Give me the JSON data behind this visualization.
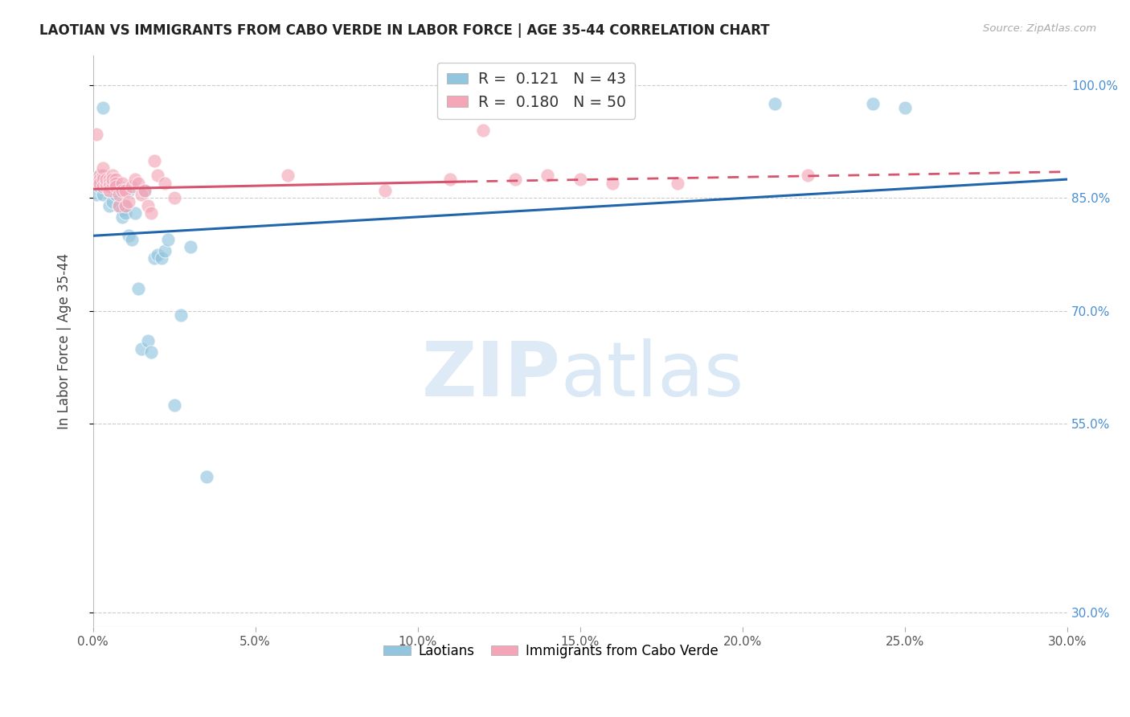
{
  "title": "LAOTIAN VS IMMIGRANTS FROM CABO VERDE IN LABOR FORCE | AGE 35-44 CORRELATION CHART",
  "source": "Source: ZipAtlas.com",
  "ylabel": "In Labor Force | Age 35-44",
  "xlim": [
    0.0,
    0.3
  ],
  "ylim": [
    0.28,
    1.04
  ],
  "xtick_labels": [
    "0.0%",
    "5.0%",
    "10.0%",
    "15.0%",
    "20.0%",
    "25.0%",
    "30.0%"
  ],
  "xtick_values": [
    0.0,
    0.05,
    0.1,
    0.15,
    0.2,
    0.25,
    0.3
  ],
  "ytick_labels": [
    "30.0%",
    "55.0%",
    "70.0%",
    "85.0%",
    "100.0%"
  ],
  "ytick_values": [
    0.3,
    0.55,
    0.7,
    0.85,
    1.0
  ],
  "blue_label": "Laotians",
  "pink_label": "Immigrants from Cabo Verde",
  "blue_R": "0.121",
  "blue_N": "43",
  "pink_R": "0.180",
  "pink_N": "50",
  "blue_color": "#92c5de",
  "pink_color": "#f4a6b8",
  "blue_line_color": "#2166ac",
  "pink_line_color": "#d6546e",
  "blue_x": [
    0.001,
    0.001,
    0.002,
    0.002,
    0.003,
    0.003,
    0.004,
    0.004,
    0.005,
    0.005,
    0.005,
    0.006,
    0.006,
    0.007,
    0.007,
    0.007,
    0.008,
    0.008,
    0.009,
    0.009,
    0.01,
    0.01,
    0.011,
    0.011,
    0.012,
    0.013,
    0.014,
    0.015,
    0.016,
    0.017,
    0.018,
    0.019,
    0.02,
    0.021,
    0.022,
    0.023,
    0.025,
    0.027,
    0.03,
    0.035,
    0.21,
    0.24,
    0.25
  ],
  "blue_y": [
    0.855,
    0.875,
    0.865,
    0.88,
    0.97,
    0.855,
    0.875,
    0.87,
    0.86,
    0.875,
    0.84,
    0.86,
    0.845,
    0.855,
    0.86,
    0.87,
    0.84,
    0.865,
    0.835,
    0.825,
    0.84,
    0.83,
    0.86,
    0.8,
    0.795,
    0.83,
    0.73,
    0.65,
    0.86,
    0.66,
    0.645,
    0.77,
    0.775,
    0.77,
    0.78,
    0.795,
    0.575,
    0.695,
    0.785,
    0.48,
    0.975,
    0.975,
    0.97
  ],
  "pink_x": [
    0.001,
    0.001,
    0.002,
    0.002,
    0.002,
    0.003,
    0.003,
    0.003,
    0.003,
    0.004,
    0.004,
    0.004,
    0.005,
    0.005,
    0.005,
    0.005,
    0.006,
    0.006,
    0.006,
    0.007,
    0.007,
    0.007,
    0.008,
    0.008,
    0.009,
    0.009,
    0.01,
    0.01,
    0.011,
    0.012,
    0.013,
    0.014,
    0.015,
    0.016,
    0.017,
    0.018,
    0.019,
    0.02,
    0.022,
    0.025,
    0.06,
    0.09,
    0.11,
    0.12,
    0.13,
    0.14,
    0.15,
    0.16,
    0.18,
    0.22
  ],
  "pink_y": [
    0.935,
    0.87,
    0.88,
    0.875,
    0.87,
    0.88,
    0.875,
    0.89,
    0.865,
    0.865,
    0.87,
    0.875,
    0.875,
    0.87,
    0.865,
    0.86,
    0.88,
    0.87,
    0.875,
    0.875,
    0.87,
    0.865,
    0.84,
    0.855,
    0.87,
    0.86,
    0.86,
    0.84,
    0.845,
    0.865,
    0.875,
    0.87,
    0.855,
    0.86,
    0.84,
    0.83,
    0.9,
    0.88,
    0.87,
    0.85,
    0.88,
    0.86,
    0.875,
    0.94,
    0.875,
    0.88,
    0.875,
    0.87,
    0.87,
    0.88
  ],
  "blue_trend_x0": 0.0,
  "blue_trend_y0": 0.8,
  "blue_trend_x1": 0.3,
  "blue_trend_y1": 0.875,
  "pink_trend_x0": 0.0,
  "pink_trend_y0": 0.862,
  "pink_trend_x1_solid": 0.115,
  "pink_trend_y1_solid": 0.872,
  "pink_trend_x1": 0.3,
  "pink_trend_y1": 0.885
}
